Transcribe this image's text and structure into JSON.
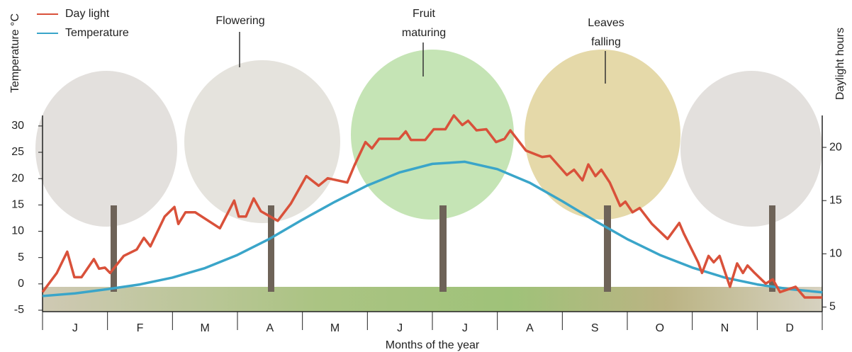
{
  "chart_data": {
    "type": "line",
    "ylabel": "Temperature °C",
    "y2label": "Daylight hours",
    "xlabel": "Months of the year",
    "categories": [
      "J",
      "F",
      "M",
      "A",
      "M",
      "J",
      "J",
      "A",
      "S",
      "O",
      "N",
      "D"
    ],
    "xlim": [
      0,
      12
    ],
    "ylim": [
      -5,
      32
    ],
    "yticks": [
      -5,
      0,
      5,
      10,
      15,
      20,
      25,
      30
    ],
    "y2lim": [
      4.7,
      23
    ],
    "y2ticks": [
      5,
      10,
      15,
      20
    ],
    "legend": "top-left",
    "annotations": [
      {
        "lines": [
          "Flowering"
        ]
      },
      {
        "lines": [
          "Fruit",
          "maturing"
        ]
      },
      {
        "lines": [
          "Leaves",
          "falling"
        ]
      }
    ],
    "series": [
      {
        "name": "Day light",
        "color": "#d9513a",
        "axis": "y2",
        "x": [
          0,
          0.22,
          0.38,
          0.49,
          0.6,
          0.79,
          0.87,
          0.96,
          1.04,
          1.25,
          1.45,
          1.56,
          1.66,
          1.88,
          2.03,
          2.09,
          2.2,
          2.35,
          2.73,
          2.95,
          3.02,
          3.13,
          3.25,
          3.36,
          3.62,
          3.82,
          4.06,
          4.25,
          4.39,
          4.69,
          4.8,
          4.97,
          5.07,
          5.18,
          5.49,
          5.59,
          5.67,
          5.89,
          6.02,
          6.2,
          6.33,
          6.46,
          6.55,
          6.68,
          6.83,
          6.98,
          7.11,
          7.2,
          7.44,
          7.69,
          7.81,
          8.07,
          8.18,
          8.31,
          8.4,
          8.51,
          8.6,
          8.73,
          8.89,
          8.97,
          9.08,
          9.19,
          9.38,
          9.62,
          9.8,
          9.87,
          10.09,
          10.15,
          10.25,
          10.33,
          10.42,
          10.58,
          10.69,
          10.78,
          10.85,
          10.96,
          11.13,
          11.24,
          11.35,
          11.59,
          11.73,
          12
        ],
        "values": [
          6.4,
          8.2,
          10.2,
          7.8,
          7.8,
          9.5,
          8.6,
          8.7,
          8.2,
          9.8,
          10.4,
          11.5,
          10.7,
          13.5,
          14.4,
          12.8,
          13.9,
          13.9,
          12.4,
          15.0,
          13.5,
          13.5,
          15.2,
          14.0,
          13.1,
          14.7,
          17.3,
          16.4,
          17.1,
          16.7,
          18.3,
          20.5,
          19.9,
          20.8,
          20.8,
          21.5,
          20.7,
          20.7,
          21.7,
          21.7,
          23.0,
          22.1,
          22.5,
          21.6,
          21.7,
          20.5,
          20.8,
          21.6,
          19.7,
          19.1,
          19.2,
          17.4,
          17.9,
          16.9,
          18.4,
          17.3,
          17.9,
          16.7,
          14.5,
          14.9,
          13.9,
          14.3,
          12.8,
          11.4,
          12.9,
          11.9,
          9.2,
          8.2,
          9.8,
          9.2,
          9.8,
          6.9,
          9.1,
          8.2,
          8.9,
          8.2,
          7.2,
          7.6,
          6.4,
          6.9,
          5.9,
          5.9
        ]
      },
      {
        "name": "Temperature",
        "color": "#3aa5c9",
        "x": [
          0,
          0.5,
          1,
          1.5,
          2,
          2.5,
          3,
          3.5,
          4,
          4.5,
          5,
          5.5,
          6,
          6.5,
          7,
          7.5,
          8,
          8.5,
          9,
          9.5,
          10,
          10.5,
          11,
          11.5,
          12
        ],
        "values": [
          -2.3,
          -1.8,
          -1.0,
          -0.1,
          1.2,
          3.0,
          5.5,
          8.6,
          12.2,
          15.6,
          18.7,
          21.2,
          22.8,
          23.2,
          21.8,
          19.2,
          15.7,
          12.0,
          8.5,
          5.5,
          3.1,
          1.2,
          -0.1,
          -1.0,
          -1.6
        ]
      }
    ]
  }
}
